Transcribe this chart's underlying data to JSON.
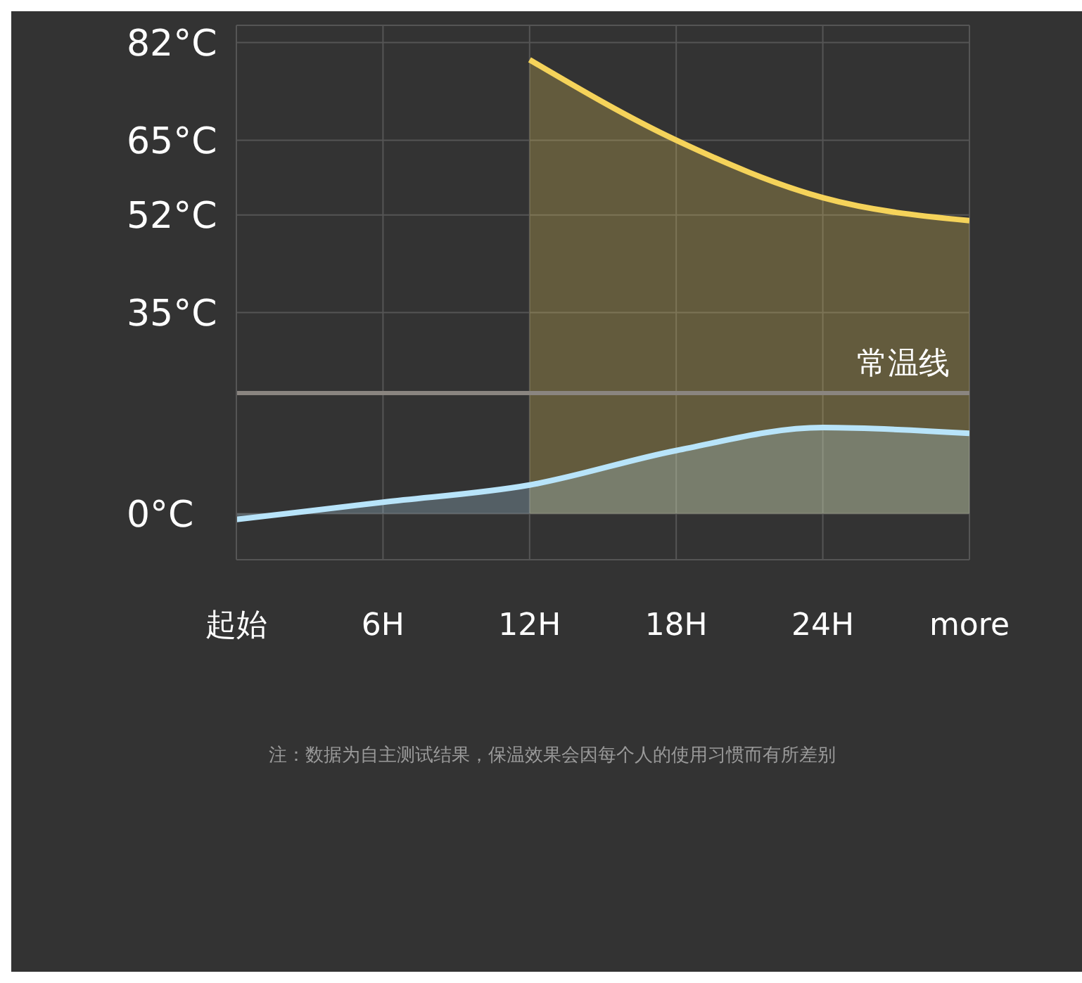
{
  "chart_data": {
    "type": "area",
    "categories": [
      "起始",
      "6H",
      "12H",
      "18H",
      "24H",
      "more"
    ],
    "series": [
      {
        "color": "#f5d35a",
        "values": [
          null,
          null,
          79,
          65,
          55,
          51
        ]
      },
      {
        "color": "#b8e4fa",
        "values": [
          -1,
          2,
          5,
          11,
          15,
          14
        ]
      }
    ],
    "ylim": [
      -8,
      85
    ],
    "yticks": [
      {
        "value": 0,
        "label": "0°C"
      },
      {
        "value": 35,
        "label": "35°C"
      },
      {
        "value": 52,
        "label": "52°C"
      },
      {
        "value": 65,
        "label": "65°C"
      },
      {
        "value": 82,
        "label": "82°C"
      }
    ],
    "ref_lines": [
      {
        "axis": "y",
        "value": 21,
        "label": "常温线",
        "color": "#8a8580"
      }
    ],
    "grid": true,
    "annotations": [
      "注：数据为自主测试结果，保温效果会因每个人的使用习惯而有所差别"
    ]
  }
}
